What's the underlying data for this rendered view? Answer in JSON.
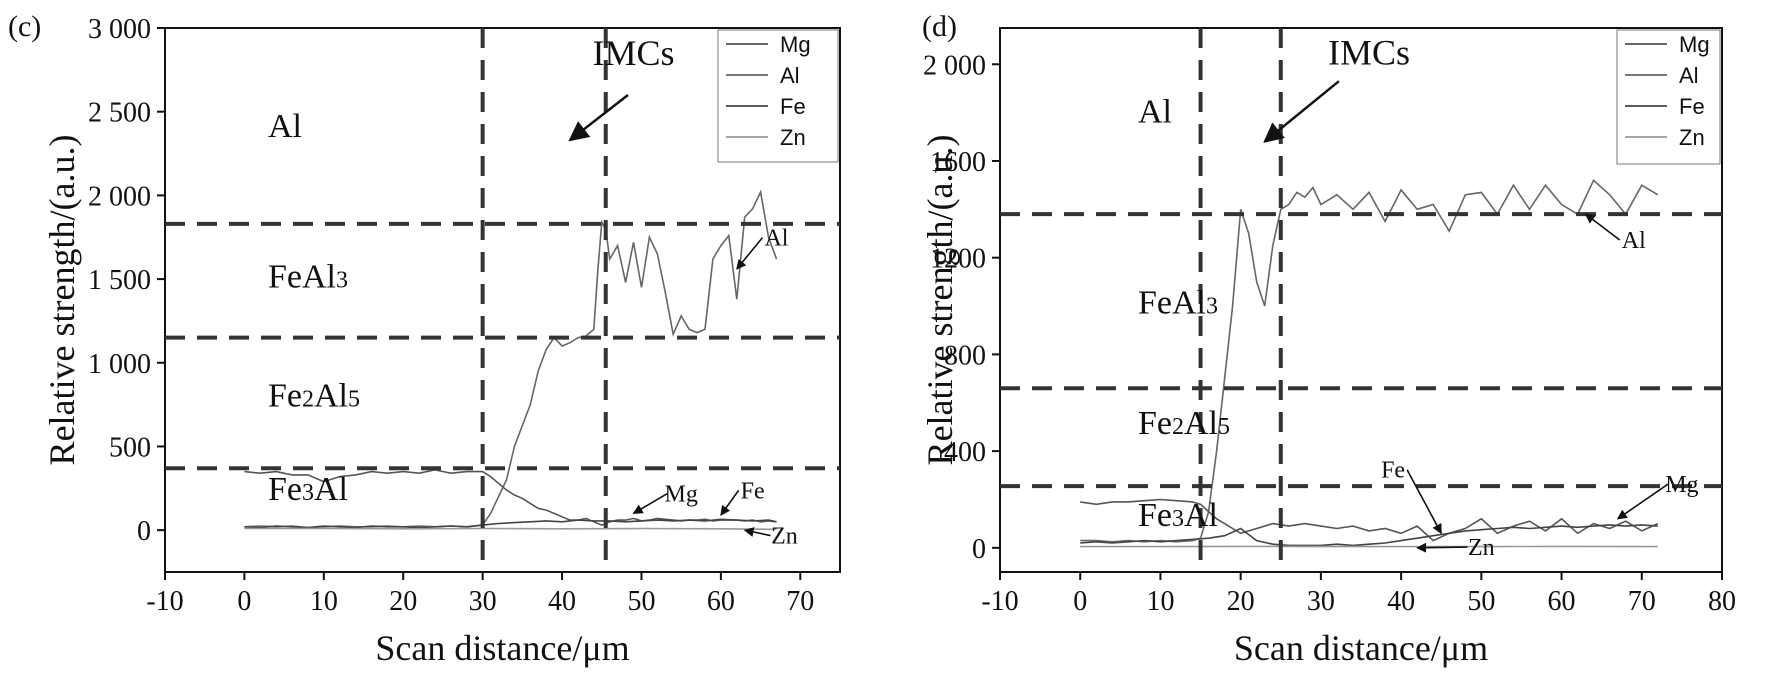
{
  "chart_data": [
    {
      "panel": "(c)",
      "type": "line",
      "xlabel": "Scan distance/μm",
      "ylabel": "Relative strength/(a.u.)",
      "xlim": [
        -10,
        75
      ],
      "ylim": [
        -250,
        3000
      ],
      "x_ticks": [
        -10,
        0,
        10,
        20,
        30,
        40,
        50,
        60,
        70
      ],
      "x_tick_labels": [
        "-10",
        "0",
        "10",
        "20",
        "30",
        "40",
        "50",
        "60",
        "70"
      ],
      "y_ticks": [
        0,
        500,
        1000,
        1500,
        2000,
        2500,
        3000
      ],
      "y_tick_labels": [
        "0",
        "500",
        "1 000",
        "1 500",
        "2 000",
        "2 500",
        "3 000"
      ],
      "legend": [
        "Mg",
        "Al",
        "Fe",
        "Zn"
      ],
      "legend_position": "top-right",
      "vlines": [
        30,
        45.5
      ],
      "hlines": [
        1830,
        1150,
        370
      ],
      "regions": [
        {
          "name": "Al",
          "parts": [
            [
              "Al",
              ""
            ]
          ],
          "y": 2350
        },
        {
          "name": "FeAl3",
          "parts": [
            [
              "FeAl",
              ""
            ],
            [
              "3",
              "sub"
            ]
          ],
          "y": 1450
        },
        {
          "name": "Fe2Al5",
          "parts": [
            [
              "Fe",
              ""
            ],
            [
              "2",
              "sub"
            ],
            [
              "Al",
              ""
            ],
            [
              "5",
              "sub"
            ]
          ],
          "y": 740
        },
        {
          "name": "Fe3Al",
          "parts": [
            [
              "Fe",
              ""
            ],
            [
              "3",
              "sub"
            ],
            [
              "Al",
              ""
            ]
          ],
          "y": 180
        }
      ],
      "imc_label": "IMCs",
      "imc_arrow": {
        "from": [
          42,
          2600
        ],
        "to": [
          41,
          2330
        ],
        "label_at": [
          49,
          2780
        ]
      },
      "annotations": [
        {
          "text": "Al",
          "x": 67,
          "y": 1700,
          "arrow_to": [
            62,
            1560
          ]
        },
        {
          "text": "Mg",
          "x": 55,
          "y": 170,
          "arrow_to": [
            49,
            100
          ]
        },
        {
          "text": "Fe",
          "x": 64,
          "y": 190,
          "arrow_to": [
            60,
            90
          ]
        },
        {
          "text": "Zn",
          "x": 68,
          "y": -80,
          "arrow_to": [
            63,
            0
          ]
        }
      ],
      "series": [
        {
          "name": "Al",
          "x": [
            0,
            2,
            4,
            6,
            8,
            10,
            12,
            14,
            16,
            18,
            20,
            22,
            24,
            26,
            28,
            30,
            31,
            33,
            34,
            36,
            37,
            38,
            39,
            40,
            41,
            42,
            43,
            44,
            44.5,
            45,
            45.5,
            46,
            47,
            48,
            49,
            50,
            51,
            52,
            53,
            54,
            55,
            56,
            57,
            58,
            59,
            60,
            61,
            62,
            63,
            64,
            65,
            66,
            67
          ],
          "values": [
            20,
            25,
            20,
            25,
            15,
            20,
            25,
            20,
            20,
            25,
            20,
            25,
            20,
            25,
            20,
            30,
            100,
            300,
            500,
            750,
            950,
            1080,
            1150,
            1100,
            1120,
            1150,
            1160,
            1200,
            1550,
            1840,
            1800,
            1620,
            1700,
            1480,
            1720,
            1450,
            1750,
            1650,
            1420,
            1170,
            1280,
            1200,
            1180,
            1200,
            1620,
            1700,
            1760,
            1380,
            1870,
            1920,
            2020,
            1750,
            1620
          ]
        },
        {
          "name": "Mg",
          "x": [
            0,
            2,
            4,
            6,
            8,
            10,
            12,
            14,
            16,
            18,
            20,
            22,
            24,
            26,
            28,
            30,
            31,
            32,
            33,
            34,
            35,
            36,
            37,
            38,
            39,
            40,
            41,
            42,
            43,
            44,
            45,
            46,
            47,
            48,
            49,
            50,
            51,
            52,
            53,
            54,
            55,
            56,
            57,
            58,
            59,
            60,
            61,
            62,
            63,
            64,
            65,
            66,
            67
          ],
          "values": [
            350,
            340,
            350,
            330,
            330,
            290,
            320,
            330,
            350,
            340,
            350,
            340,
            360,
            340,
            350,
            350,
            320,
            280,
            240,
            210,
            190,
            160,
            130,
            120,
            100,
            80,
            60,
            60,
            70,
            50,
            30,
            50,
            60,
            60,
            70,
            55,
            60,
            70,
            65,
            60,
            55,
            60,
            60,
            65,
            55,
            60,
            60,
            60,
            55,
            60,
            50,
            55,
            50
          ]
        },
        {
          "name": "Fe",
          "x": [
            0,
            2,
            4,
            6,
            8,
            10,
            12,
            14,
            16,
            18,
            20,
            22,
            24,
            26,
            28,
            30,
            32,
            34,
            36,
            38,
            40,
            42,
            44,
            46,
            48,
            50,
            52,
            54,
            56,
            58,
            60,
            62,
            64,
            66,
            67
          ],
          "values": [
            20,
            15,
            25,
            20,
            15,
            25,
            20,
            15,
            25,
            20,
            20,
            15,
            20,
            25,
            20,
            30,
            40,
            45,
            50,
            55,
            50,
            60,
            55,
            55,
            50,
            55,
            60,
            55,
            60,
            55,
            65,
            60,
            55,
            60,
            50
          ]
        },
        {
          "name": "Zn",
          "x": [
            0,
            10,
            20,
            30,
            40,
            50,
            60,
            67
          ],
          "values": [
            10,
            10,
            8,
            10,
            8,
            10,
            8,
            5
          ]
        }
      ]
    },
    {
      "panel": "(d)",
      "type": "line",
      "xlabel": "Scan distance/μm",
      "ylabel": "Relative strength/(a.u.)",
      "xlim": [
        -10,
        80
      ],
      "ylim": [
        -100,
        2150
      ],
      "x_ticks": [
        -10,
        0,
        10,
        20,
        30,
        40,
        50,
        60,
        70,
        80
      ],
      "x_tick_labels": [
        "-10",
        "0",
        "10",
        "20",
        "30",
        "40",
        "50",
        "60",
        "70",
        "80"
      ],
      "y_ticks": [
        0,
        400,
        800,
        1200,
        1600,
        2000
      ],
      "y_tick_labels": [
        "0",
        "400",
        "800",
        "1200",
        "1600",
        "2 000"
      ],
      "legend": [
        "Mg",
        "Al",
        "Fe",
        "Zn"
      ],
      "legend_position": "top-right",
      "vlines": [
        15,
        25
      ],
      "hlines": [
        1380,
        660,
        255
      ],
      "regions": [
        {
          "name": "Al",
          "parts": [
            [
              "Al",
              ""
            ]
          ],
          "y": 1760
        },
        {
          "name": "FeAl3",
          "parts": [
            [
              "FeAl",
              ""
            ],
            [
              "3",
              "sub"
            ]
          ],
          "y": 970
        },
        {
          "name": "Fe2Al5",
          "parts": [
            [
              "Fe",
              ""
            ],
            [
              "2",
              "sub"
            ],
            [
              "Al",
              ""
            ],
            [
              "5",
              "sub"
            ]
          ],
          "y": 470
        },
        {
          "name": "Fe3Al",
          "parts": [
            [
              "Fe",
              ""
            ],
            [
              "3",
              "sub"
            ],
            [
              "Al",
              ""
            ]
          ],
          "y": 90
        }
      ],
      "imc_label": "IMCs",
      "imc_arrow": {
        "from": [
          31,
          1930
        ],
        "to": [
          23,
          1680
        ],
        "label_at": [
          36,
          2000
        ]
      },
      "annotations": [
        {
          "text": "Al",
          "x": 69,
          "y": 1240,
          "arrow_to": [
            63,
            1380
          ]
        },
        {
          "text": "Fe",
          "x": 39,
          "y": 290,
          "arrow_to": [
            45,
            60
          ]
        },
        {
          "text": "Mg",
          "x": 75,
          "y": 230,
          "arrow_to": [
            67,
            120
          ]
        },
        {
          "text": "Zn",
          "x": 50,
          "y": -30,
          "arrow_to": [
            42,
            0
          ]
        }
      ],
      "series": [
        {
          "name": "Al",
          "x": [
            0,
            2,
            4,
            6,
            8,
            10,
            12,
            14,
            15,
            16,
            17,
            18,
            19,
            20,
            21,
            22,
            23,
            24,
            25,
            26,
            27,
            28,
            29,
            30,
            32,
            34,
            36,
            38,
            40,
            42,
            44,
            46,
            48,
            50,
            52,
            54,
            56,
            58,
            60,
            62,
            64,
            66,
            68,
            70,
            72
          ],
          "values": [
            30,
            30,
            25,
            30,
            25,
            30,
            25,
            30,
            40,
            150,
            400,
            700,
            1000,
            1400,
            1300,
            1100,
            1000,
            1250,
            1400,
            1420,
            1470,
            1450,
            1490,
            1420,
            1460,
            1400,
            1470,
            1350,
            1480,
            1400,
            1420,
            1310,
            1460,
            1470,
            1380,
            1500,
            1400,
            1500,
            1420,
            1380,
            1520,
            1460,
            1380,
            1500,
            1460
          ]
        },
        {
          "name": "Mg",
          "x": [
            0,
            2,
            4,
            6,
            8,
            10,
            12,
            14,
            15,
            16,
            17,
            18,
            19,
            20,
            22,
            24,
            26,
            28,
            30,
            32,
            34,
            36,
            38,
            40,
            42,
            44,
            46,
            48,
            50,
            52,
            54,
            56,
            58,
            60,
            62,
            64,
            66,
            68,
            70,
            72
          ],
          "values": [
            190,
            180,
            190,
            190,
            195,
            200,
            195,
            190,
            180,
            150,
            120,
            100,
            80,
            60,
            80,
            100,
            90,
            100,
            90,
            80,
            90,
            70,
            80,
            60,
            90,
            30,
            60,
            80,
            120,
            60,
            90,
            110,
            70,
            120,
            60,
            100,
            80,
            110,
            70,
            100
          ]
        },
        {
          "name": "Fe",
          "x": [
            0,
            2,
            4,
            6,
            8,
            10,
            12,
            14,
            16,
            18,
            20,
            22,
            24,
            26,
            28,
            30,
            32,
            34,
            36,
            38,
            40,
            42,
            44,
            46,
            48,
            50,
            52,
            54,
            56,
            58,
            60,
            62,
            64,
            66,
            68,
            70,
            72
          ],
          "values": [
            20,
            25,
            20,
            25,
            30,
            25,
            30,
            35,
            40,
            50,
            80,
            30,
            15,
            10,
            10,
            10,
            15,
            10,
            15,
            20,
            30,
            40,
            50,
            60,
            70,
            75,
            80,
            85,
            80,
            85,
            90,
            85,
            90,
            95,
            90,
            95,
            90
          ]
        },
        {
          "name": "Zn",
          "x": [
            0,
            10,
            20,
            30,
            40,
            50,
            60,
            72
          ],
          "values": [
            5,
            5,
            6,
            5,
            5,
            5,
            6,
            5
          ]
        }
      ]
    }
  ]
}
